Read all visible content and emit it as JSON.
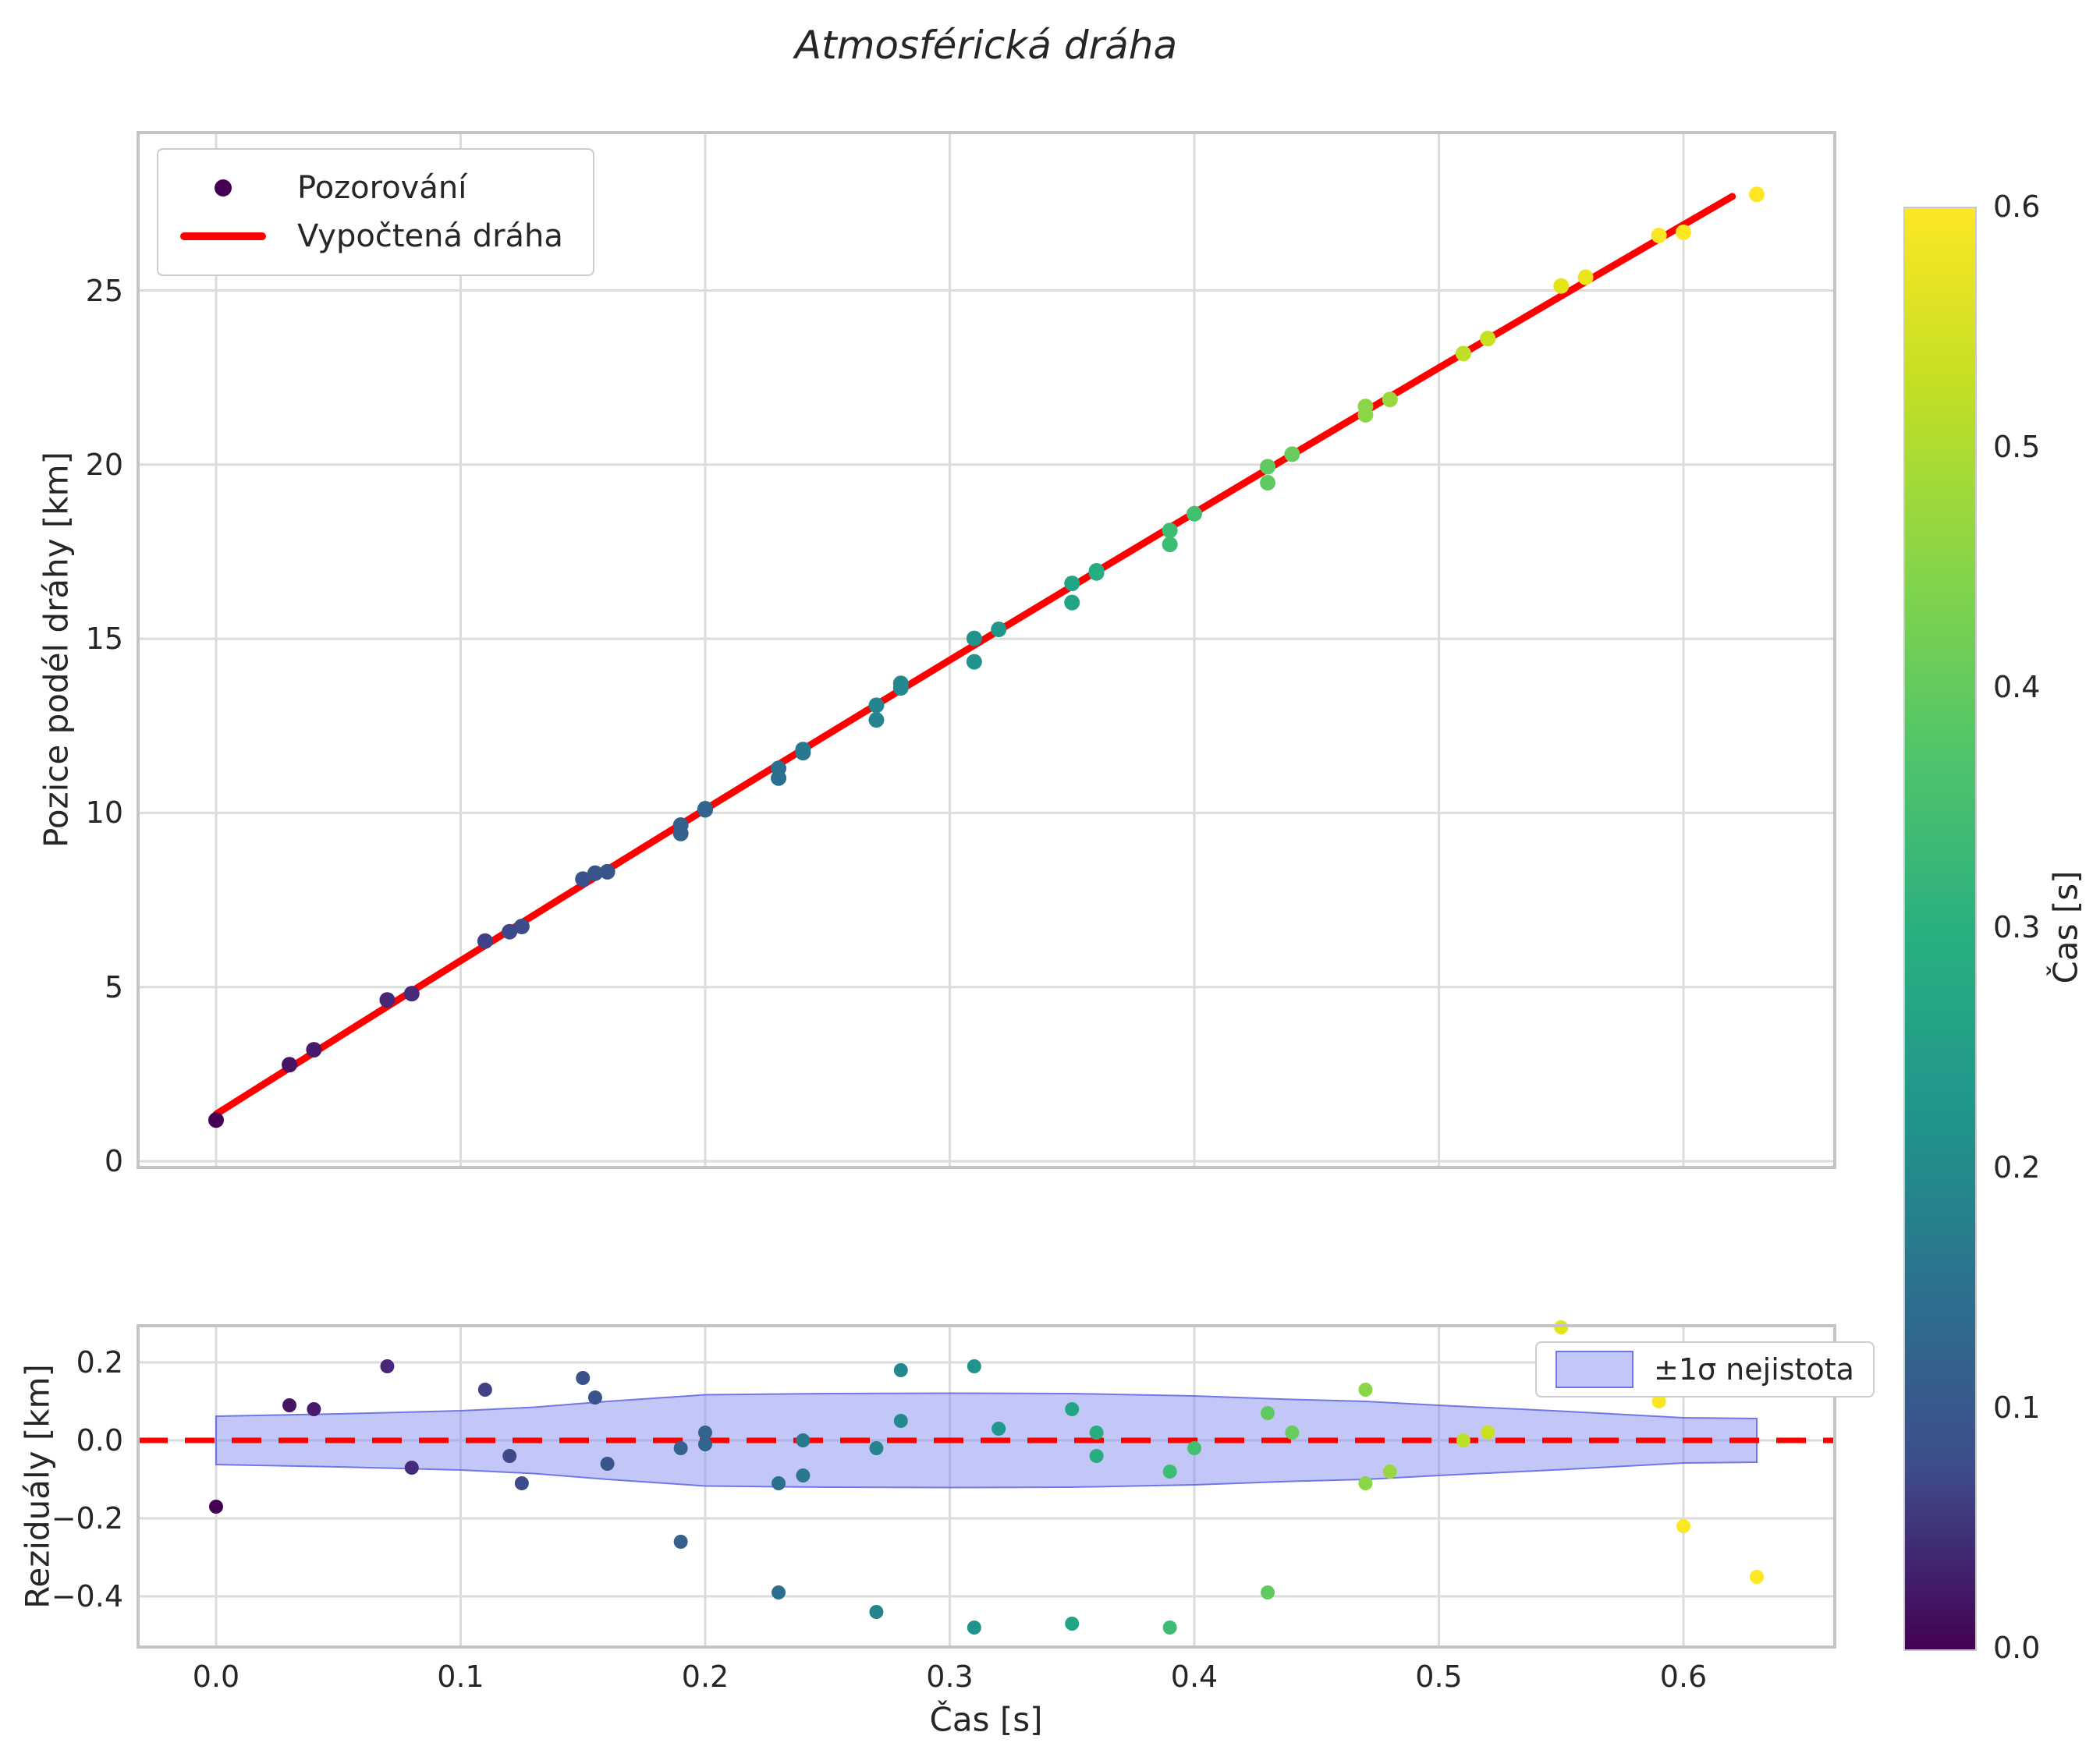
{
  "title": "Atmosférická dráha",
  "colors": {
    "fit_line": "#ff0000",
    "zero_line": "#ff0000",
    "band_fill": "rgba(123,131,240,0.45)",
    "band_edge": "rgba(100,108,230,0.9)",
    "grid": "#dcdcdc",
    "spine": "#c4c4c4",
    "text": "#262626",
    "legend_dot": "#440154"
  },
  "legend": {
    "observations_label": "Pozorování",
    "fit_label": "Vypočtená dráha",
    "band_label": "±1σ nejistota"
  },
  "colorbar": {
    "label": "Čas [s]",
    "tick_labels": [
      "0.6",
      "0.5",
      "0.4",
      "0.3",
      "0.2",
      "0.1",
      "0.0"
    ],
    "vmin": 0.0,
    "vmax": 0.6,
    "colormap": "viridis"
  },
  "chart_data": [
    {
      "type": "scatter",
      "panel": "main",
      "title": "Atmosférická dráha",
      "xlabel": "Čas [s]",
      "ylabel": "Pozice podél dráhy [km]",
      "xlim": [
        -0.032,
        0.662
      ],
      "ylim": [
        -0.18,
        29.5
      ],
      "grid": true,
      "legend_position": "upper left",
      "xticks": [
        0.0,
        0.1,
        0.2,
        0.3,
        0.4,
        0.5,
        0.6
      ],
      "xtick_labels": [
        "0.0",
        "0.1",
        "0.2",
        "0.3",
        "0.4",
        "0.5",
        "0.6"
      ],
      "yticks": [
        0,
        5,
        10,
        15,
        20,
        25
      ],
      "ytick_labels": [
        "0",
        "5",
        "10",
        "15",
        "20",
        "25"
      ],
      "points_note": "each point = [time_s, position_km, residual_km, viridis_color]",
      "points": [
        [
          0.0,
          1.18,
          -0.17,
          "#440154"
        ],
        [
          0.03,
          2.77,
          0.09,
          "#471365"
        ],
        [
          0.04,
          3.2,
          0.08,
          "#481a6c"
        ],
        [
          0.07,
          4.63,
          0.19,
          "#482777"
        ],
        [
          0.08,
          4.81,
          -0.07,
          "#472a7a"
        ],
        [
          0.11,
          6.32,
          0.13,
          "#424086"
        ],
        [
          0.12,
          6.59,
          -0.04,
          "#3f4889"
        ],
        [
          0.125,
          6.74,
          -0.11,
          "#3e4a8a"
        ],
        [
          0.15,
          8.1,
          0.16,
          "#3b518b"
        ],
        [
          0.155,
          8.27,
          0.11,
          "#3a538b"
        ],
        [
          0.16,
          8.31,
          -0.06,
          "#39558c"
        ],
        [
          0.19,
          9.65,
          -0.02,
          "#34618d"
        ],
        [
          0.19,
          9.41,
          -0.26,
          "#34618d"
        ],
        [
          0.2,
          10.12,
          0.02,
          "#32648e"
        ],
        [
          0.2,
          10.09,
          -0.01,
          "#32648e"
        ],
        [
          0.23,
          11.28,
          -0.11,
          "#2c6f8e"
        ],
        [
          0.23,
          11.0,
          -0.39,
          "#2c6f8e"
        ],
        [
          0.24,
          11.73,
          -0.09,
          "#2a788e"
        ],
        [
          0.24,
          11.82,
          0.0,
          "#2a788e"
        ],
        [
          0.27,
          13.09,
          -0.02,
          "#25848e"
        ],
        [
          0.27,
          12.67,
          -0.44,
          "#25848e"
        ],
        [
          0.28,
          13.59,
          0.05,
          "#23898e"
        ],
        [
          0.28,
          13.72,
          0.18,
          "#23898e"
        ],
        [
          0.31,
          15.01,
          0.19,
          "#20948c"
        ],
        [
          0.31,
          14.34,
          -0.48,
          "#20948c"
        ],
        [
          0.32,
          15.27,
          0.03,
          "#1f988b"
        ],
        [
          0.35,
          16.59,
          0.08,
          "#21a585"
        ],
        [
          0.35,
          16.04,
          -0.47,
          "#21a585"
        ],
        [
          0.36,
          16.95,
          0.02,
          "#27ad81"
        ],
        [
          0.36,
          16.89,
          -0.04,
          "#27ad81"
        ],
        [
          0.39,
          18.11,
          -0.08,
          "#3dbc74"
        ],
        [
          0.39,
          17.71,
          -0.48,
          "#3dbc74"
        ],
        [
          0.4,
          18.59,
          -0.02,
          "#44bf70"
        ],
        [
          0.43,
          19.94,
          0.07,
          "#60ca60"
        ],
        [
          0.43,
          19.48,
          -0.39,
          "#60ca60"
        ],
        [
          0.44,
          20.3,
          0.02,
          "#68cc5c"
        ],
        [
          0.47,
          21.67,
          0.13,
          "#8bd646"
        ],
        [
          0.47,
          21.43,
          -0.11,
          "#8bd646"
        ],
        [
          0.48,
          21.87,
          -0.08,
          "#98d83e"
        ],
        [
          0.51,
          23.19,
          0.0,
          "#bddf26"
        ],
        [
          0.52,
          23.62,
          0.02,
          "#c8e020"
        ],
        [
          0.55,
          25.13,
          0.29,
          "#e5e419"
        ],
        [
          0.56,
          25.38,
          0.13,
          "#ece51b"
        ],
        [
          0.59,
          26.58,
          0.1,
          "#f9e721"
        ],
        [
          0.6,
          26.67,
          -0.22,
          "#fde725"
        ],
        [
          0.63,
          27.76,
          -0.35,
          "#fde725"
        ]
      ],
      "fit_curve": {
        "label": "Vypočtená dráha",
        "t_min": 0.0,
        "t_max": 0.631,
        "model": "y = a + b*t + c*t^2",
        "a": 1.35,
        "b": 44.36,
        "c": -3.0
      }
    },
    {
      "type": "scatter",
      "panel": "residuals",
      "xlabel": "Čas [s]",
      "ylabel": "Reziduály [km]",
      "xlim": [
        -0.032,
        0.662
      ],
      "ylim": [
        -0.53,
        0.294
      ],
      "grid": true,
      "legend_position": "upper right",
      "yticks": [
        0.2,
        0.0,
        -0.2,
        -0.4
      ],
      "ytick_labels": [
        "0.2",
        "0.0",
        "−0.2",
        "−0.4"
      ],
      "zero_line": 0.0,
      "uncertainty_band": {
        "label": "±1σ nejistota",
        "t": [
          0.0,
          0.05,
          0.1,
          0.13,
          0.16,
          0.2,
          0.25,
          0.3,
          0.35,
          0.4,
          0.44,
          0.47,
          0.5,
          0.55,
          0.6,
          0.63
        ],
        "half_width": [
          0.062,
          0.068,
          0.076,
          0.085,
          0.1,
          0.117,
          0.12,
          0.121,
          0.12,
          0.114,
          0.105,
          0.1,
          0.09,
          0.075,
          0.058,
          0.056
        ]
      }
    }
  ]
}
